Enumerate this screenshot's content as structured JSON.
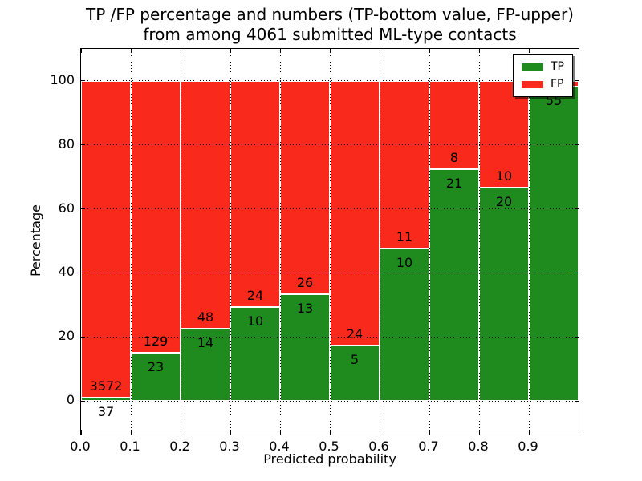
{
  "chart_data": {
    "type": "bar",
    "stacked": true,
    "normalized_to_percent": true,
    "title_line1": "TP /FP percentage and numbers (TP-bottom value, FP-upper)",
    "title_line2": "from among 4061 submitted ML-type contacts",
    "xlabel": "Predicted probability",
    "ylabel": "Percentage",
    "x_tick_labels": [
      "0.0",
      "0.1",
      "0.2",
      "0.3",
      "0.4",
      "0.5",
      "0.6",
      "0.7",
      "0.8",
      "0.9"
    ],
    "y_ticks": [
      0,
      20,
      40,
      60,
      80,
      100
    ],
    "y_tick_labels": [
      "0",
      "20",
      "40",
      "60",
      "80",
      "100"
    ],
    "xlim": [
      0,
      1
    ],
    "ylim": [
      -10.5,
      110
    ],
    "grid": "dotted-black-over-bars",
    "colors": {
      "tp": "#1f8b1f",
      "fp": "#f92a1b",
      "bar_edge": "#ffffff"
    },
    "legend": {
      "position": "upper right",
      "items": [
        {
          "label": "TP",
          "color": "#1f8b1f"
        },
        {
          "label": "FP",
          "color": "#f92a1b"
        }
      ]
    },
    "bins": [
      {
        "range": "0.0-0.1",
        "x0": 0.0,
        "x1": 0.1,
        "tp_label": "37",
        "fp_label": "3572",
        "tp_pct": 1.03
      },
      {
        "range": "0.1-0.2",
        "x0": 0.1,
        "x1": 0.2,
        "tp_label": "23",
        "fp_label": "129",
        "tp_pct": 15.13
      },
      {
        "range": "0.2-0.3",
        "x0": 0.2,
        "x1": 0.3,
        "tp_label": "14",
        "fp_label": "48",
        "tp_pct": 22.58
      },
      {
        "range": "0.3-0.4",
        "x0": 0.3,
        "x1": 0.4,
        "tp_label": "10",
        "fp_label": "24",
        "tp_pct": 29.41
      },
      {
        "range": "0.4-0.5",
        "x0": 0.4,
        "x1": 0.5,
        "tp_label": "13",
        "fp_label": "26",
        "tp_pct": 33.33
      },
      {
        "range": "0.5-0.6",
        "x0": 0.5,
        "x1": 0.6,
        "tp_label": "5",
        "fp_label": "24",
        "tp_pct": 17.24
      },
      {
        "range": "0.6-0.7",
        "x0": 0.6,
        "x1": 0.7,
        "tp_label": "10",
        "fp_label": "11",
        "tp_pct": 47.62
      },
      {
        "range": "0.7-0.8",
        "x0": 0.7,
        "x1": 0.8,
        "tp_label": "21",
        "fp_label": "8",
        "tp_pct": 72.41
      },
      {
        "range": "0.8-0.9",
        "x0": 0.8,
        "x1": 0.9,
        "tp_label": "20",
        "fp_label": "10",
        "tp_pct": 66.67
      },
      {
        "range": "0.9-1.0",
        "x0": 0.9,
        "x1": 1.0,
        "tp_label": "55",
        "fp_label": null,
        "tp_pct": 98.21,
        "note": "FP label hidden behind legend"
      }
    ]
  }
}
